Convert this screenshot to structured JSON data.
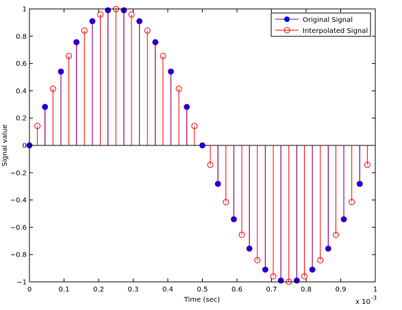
{
  "chart_data": {
    "type": "scatter",
    "style": "stem",
    "xlabel": "Time (sec)",
    "ylabel": "Signal value",
    "x_exponent_label": "x 10",
    "x_exponent_power": "-3",
    "xlim": [
      0,
      1
    ],
    "ylim": [
      -1,
      1
    ],
    "x_ticks": [
      "0",
      "0.1",
      "0.2",
      "0.3",
      "0.4",
      "0.5",
      "0.6",
      "0.7",
      "0.8",
      "0.9",
      "1"
    ],
    "y_ticks": [
      "−1",
      "−0.8",
      "−0.6",
      "−0.4",
      "−0.2",
      "0",
      "0.2",
      "0.4",
      "0.6",
      "0.8",
      "1"
    ],
    "grid": false,
    "legend_position": "top-right",
    "colors": {
      "original": "#0000ff",
      "original_stem": "#800080",
      "interpolated": "#ff0000"
    },
    "series": [
      {
        "name": "Original Signal",
        "marker": "filled-circle",
        "x": [
          0,
          0.045,
          0.091,
          0.136,
          0.182,
          0.227,
          0.273,
          0.318,
          0.364,
          0.409,
          0.455,
          0.5,
          0.545,
          0.591,
          0.636,
          0.682,
          0.727,
          0.773,
          0.818,
          0.864,
          0.909,
          0.955
        ],
        "y": [
          0,
          0.282,
          0.541,
          0.756,
          0.91,
          0.99,
          0.99,
          0.91,
          0.756,
          0.541,
          0.282,
          0,
          -0.282,
          -0.541,
          -0.756,
          -0.91,
          -0.99,
          -0.99,
          -0.91,
          -0.756,
          -0.541,
          -0.282
        ]
      },
      {
        "name": "Interpolated Signal",
        "marker": "open-circle",
        "x": [
          0,
          0.023,
          0.045,
          0.068,
          0.091,
          0.114,
          0.136,
          0.159,
          0.182,
          0.205,
          0.227,
          0.25,
          0.273,
          0.295,
          0.318,
          0.341,
          0.364,
          0.386,
          0.409,
          0.432,
          0.455,
          0.477,
          0.5,
          0.523,
          0.545,
          0.568,
          0.591,
          0.614,
          0.636,
          0.659,
          0.682,
          0.705,
          0.727,
          0.75,
          0.773,
          0.795,
          0.818,
          0.841,
          0.864,
          0.886,
          0.909,
          0.932,
          0.955,
          0.977
        ],
        "y": [
          0,
          0.142,
          0.282,
          0.415,
          0.541,
          0.655,
          0.756,
          0.841,
          0.91,
          0.959,
          0.99,
          0.999,
          0.99,
          0.959,
          0.91,
          0.841,
          0.756,
          0.655,
          0.541,
          0.415,
          0.282,
          0.142,
          0,
          -0.142,
          -0.282,
          -0.415,
          -0.541,
          -0.655,
          -0.756,
          -0.841,
          -0.91,
          -0.959,
          -0.99,
          -0.999,
          -0.99,
          -0.959,
          -0.91,
          -0.841,
          -0.756,
          -0.655,
          -0.541,
          -0.415,
          -0.282,
          -0.142
        ]
      }
    ]
  }
}
